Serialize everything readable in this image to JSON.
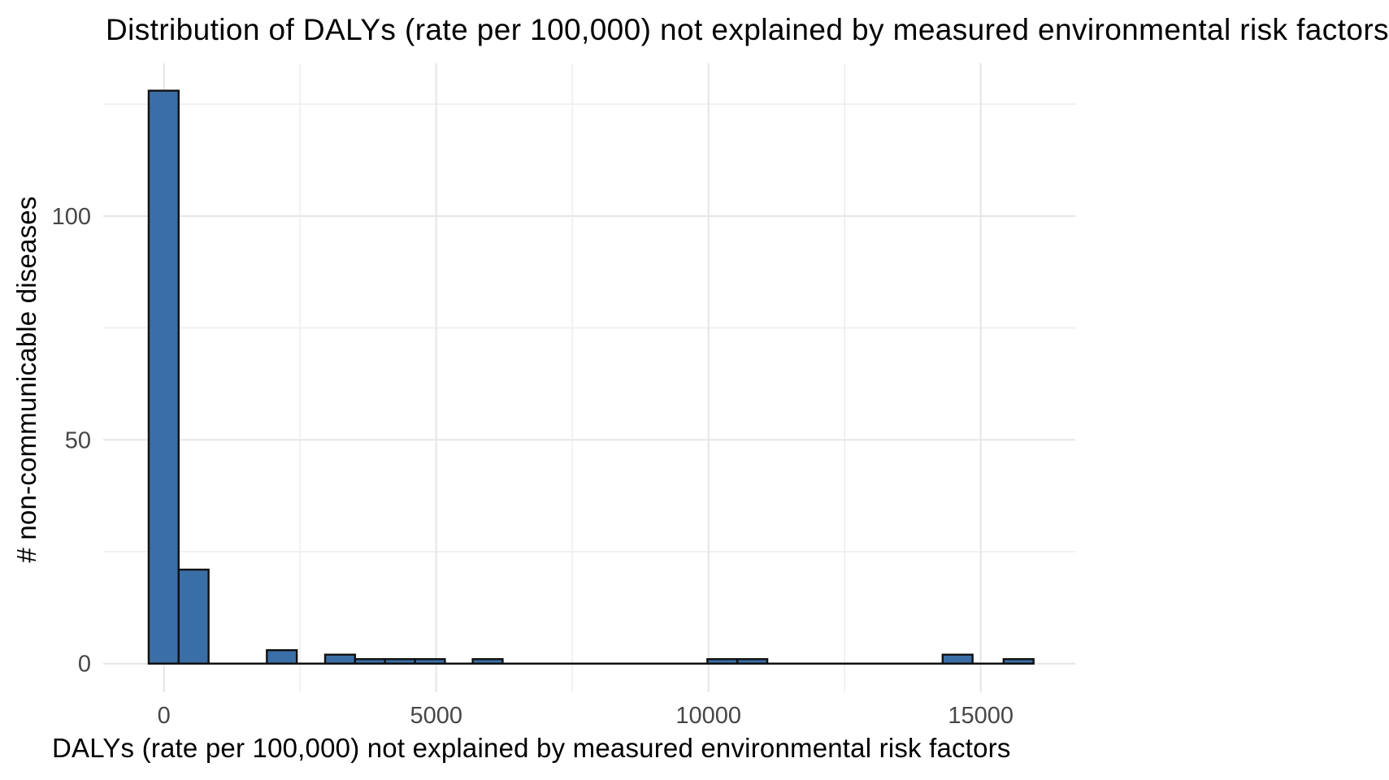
{
  "chart_data": {
    "type": "bar",
    "subtype": "histogram",
    "title": "Distribution of DALYs (rate per 100,000) not explained by measured environmental risk factors",
    "xlabel": "DALYs (rate per 100,000) not explained by measured environmental risk factors",
    "ylabel": "# non-communicable diseases",
    "x_ticks": [
      {
        "value": 0,
        "label": "0"
      },
      {
        "value": 5000,
        "label": "5000"
      },
      {
        "value": 10000,
        "label": "10000"
      },
      {
        "value": 15000,
        "label": "15000"
      }
    ],
    "x_minor_gridlines": [
      2500,
      7500,
      12500
    ],
    "y_ticks": [
      {
        "value": 0,
        "label": "0"
      },
      {
        "value": 50,
        "label": "50"
      },
      {
        "value": 100,
        "label": "100"
      }
    ],
    "y_minor_gridlines": [
      25,
      75,
      125
    ],
    "xlim": [
      -1115,
      16736
    ],
    "ylim": [
      -6.4,
      134.1
    ],
    "grid": true,
    "legend": false,
    "bin_width": 550,
    "bars": [
      {
        "x_start": -280,
        "x_end": 270,
        "count": 128
      },
      {
        "x_start": 270,
        "x_end": 820,
        "count": 21
      },
      {
        "x_start": 1890,
        "x_end": 2440,
        "count": 3
      },
      {
        "x_start": 2960,
        "x_end": 3510,
        "count": 2
      },
      {
        "x_start": 3510,
        "x_end": 4060,
        "count": 1
      },
      {
        "x_start": 4060,
        "x_end": 4610,
        "count": 1
      },
      {
        "x_start": 4610,
        "x_end": 5160,
        "count": 1
      },
      {
        "x_start": 5670,
        "x_end": 6220,
        "count": 1
      },
      {
        "x_start": 9980,
        "x_end": 10530,
        "count": 1
      },
      {
        "x_start": 10530,
        "x_end": 11080,
        "count": 1
      },
      {
        "x_start": 14300,
        "x_end": 14850,
        "count": 2
      },
      {
        "x_start": 15420,
        "x_end": 15970,
        "count": 1
      }
    ],
    "zero_baseline_extent": [
      -280,
      15970
    ],
    "colors": {
      "background": "#FFFFFF",
      "bar_fill": "#3A6EA6",
      "bar_stroke": "#111111",
      "grid_major": "#E7E7E7",
      "grid_minor": "#EFEFEF",
      "tick_label": "#474747",
      "text": "#000000"
    }
  }
}
